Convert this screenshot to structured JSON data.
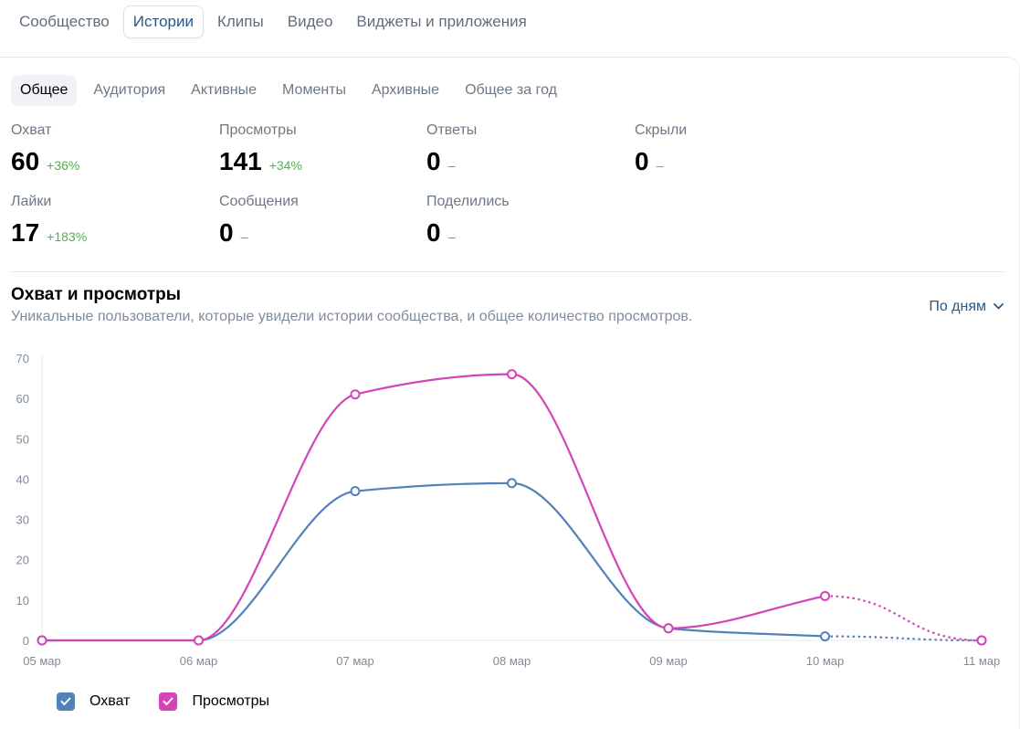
{
  "top_tabs": [
    "Сообщество",
    "Истории",
    "Клипы",
    "Видео",
    "Виджеты и приложения"
  ],
  "sub_tabs": [
    "Общее",
    "Аудитория",
    "Активные",
    "Моменты",
    "Архивные",
    "Общее за год"
  ],
  "stats": [
    {
      "label": "Охват",
      "value": "60",
      "delta": "+36%"
    },
    {
      "label": "Просмотры",
      "value": "141",
      "delta": "+34%"
    },
    {
      "label": "Ответы",
      "value": "0",
      "delta": "–"
    },
    {
      "label": "Скрыли",
      "value": "0",
      "delta": "–"
    },
    {
      "label": "Лайки",
      "value": "17",
      "delta": "+183%"
    },
    {
      "label": "Сообщения",
      "value": "0",
      "delta": "–"
    },
    {
      "label": "Поделились",
      "value": "0",
      "delta": "–"
    }
  ],
  "chart_header": {
    "title": "Охват и просмотры",
    "subtitle": "Уникальные пользователи, которые увидели истории сообщества, и общее количество просмотров.",
    "period": "По дням"
  },
  "chart_data": {
    "type": "line",
    "x": [
      "05 мар",
      "06 мар",
      "07 мар",
      "08 мар",
      "09 мар",
      "10 мар",
      "11 мар"
    ],
    "ylim": [
      0,
      70
    ],
    "yticks": [
      0,
      10,
      20,
      30,
      40,
      50,
      60,
      70
    ],
    "series": [
      {
        "name": "Охват",
        "color": "#5181b8",
        "values": [
          0,
          0,
          37,
          39,
          3,
          1,
          0
        ]
      },
      {
        "name": "Просмотры",
        "color": "#d345b6",
        "values": [
          0,
          0,
          61,
          66,
          3,
          11,
          0
        ]
      }
    ],
    "last_segment_dashed": true
  },
  "legend": [
    {
      "label": "Охват",
      "color": "#5181b8"
    },
    {
      "label": "Просмотры",
      "color": "#d345b6"
    }
  ]
}
